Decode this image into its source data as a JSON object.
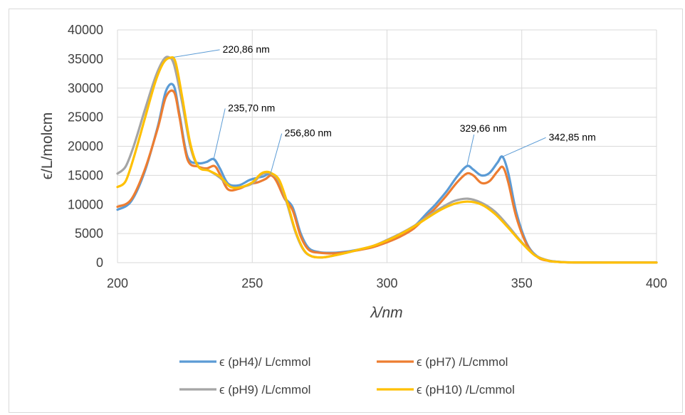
{
  "chart_data": {
    "type": "line",
    "title": "",
    "xlabel": "λ/nm",
    "ylabel": "ϵ/L/molcm",
    "xlim": [
      200,
      400
    ],
    "ylim": [
      0,
      40000
    ],
    "x_ticks": [
      "200",
      "250",
      "300",
      "350",
      "400"
    ],
    "y_ticks": [
      "0",
      "5000",
      "10000",
      "15000",
      "20000",
      "25000",
      "30000",
      "35000",
      "40000"
    ],
    "grid": true,
    "legend_position": "bottom",
    "series": [
      {
        "name": "ϵ (pH4)/ L/cmmol",
        "color": "#5B9BD5",
        "x": [
          200,
          205,
          210,
          215,
          218,
          220.86,
          223,
          226,
          230,
          233,
          235.7,
          238,
          241,
          245,
          249,
          252,
          254,
          256.8,
          259,
          262,
          265,
          268,
          271,
          275,
          280,
          285,
          290,
          295,
          300,
          305,
          310,
          315,
          318,
          322,
          326,
          329.66,
          332,
          335,
          338,
          341,
          342.85,
          345,
          348,
          352,
          356,
          360,
          365,
          370,
          380,
          390,
          400
        ],
        "y": [
          9100,
          10500,
          15500,
          23500,
          29500,
          30400,
          25500,
          18200,
          17100,
          17300,
          17800,
          16200,
          13600,
          13300,
          14200,
          14600,
          14800,
          15300,
          14200,
          11200,
          9500,
          5000,
          2500,
          1800,
          1700,
          1900,
          2300,
          2800,
          3800,
          4800,
          6200,
          8600,
          10000,
          12200,
          14800,
          16600,
          16000,
          15000,
          15400,
          17200,
          18200,
          15400,
          8600,
          3200,
          1000,
          350,
          100,
          50,
          30,
          20,
          20
        ]
      },
      {
        "name": "ϵ (pH7) /L/cmmol",
        "color": "#ED7D31",
        "x": [
          200,
          205,
          210,
          215,
          218,
          221,
          223,
          226,
          230,
          233,
          236,
          238,
          241,
          245,
          249,
          252,
          255,
          257,
          259,
          262,
          265,
          268,
          271,
          275,
          280,
          285,
          290,
          295,
          300,
          305,
          310,
          315,
          318,
          322,
          326,
          329.5,
          332,
          335,
          338,
          341,
          343,
          345,
          348,
          352,
          356,
          360,
          365,
          370,
          380,
          390,
          400
        ],
        "y": [
          9600,
          10800,
          15800,
          23200,
          28500,
          29300,
          25000,
          17700,
          16500,
          16200,
          16600,
          15200,
          12600,
          12700,
          13500,
          13800,
          14400,
          15000,
          14000,
          11000,
          9000,
          4500,
          2200,
          1700,
          1600,
          1800,
          2200,
          2700,
          3500,
          4500,
          5900,
          8100,
          9400,
          11500,
          13800,
          15300,
          15000,
          13700,
          14000,
          15700,
          16400,
          13800,
          7800,
          3000,
          900,
          300,
          90,
          40,
          20,
          20,
          20
        ]
      },
      {
        "name": "ϵ (pH9) /L/cmmol",
        "color": "#A5A5A5",
        "x": [
          200,
          203,
          206,
          210,
          214,
          217,
          219,
          221,
          224,
          227,
          230,
          234,
          238,
          242,
          246,
          250,
          253,
          255,
          257,
          260,
          263,
          266,
          269,
          272,
          276,
          280,
          285,
          290,
          295,
          300,
          305,
          310,
          315,
          320,
          325,
          330,
          335,
          340,
          345,
          350,
          355,
          360,
          365,
          370,
          380,
          390,
          400
        ],
        "y": [
          15300,
          16500,
          20000,
          26000,
          31800,
          34800,
          35300,
          34000,
          27500,
          20000,
          16500,
          15800,
          14600,
          13000,
          13000,
          13600,
          15000,
          15400,
          15300,
          14000,
          10000,
          5300,
          2200,
          1100,
          900,
          1200,
          1700,
          2300,
          2900,
          3900,
          5000,
          6300,
          7900,
          9400,
          10600,
          11000,
          10300,
          8800,
          6300,
          3500,
          1300,
          350,
          100,
          50,
          30,
          20,
          20
        ]
      },
      {
        "name": "ϵ (pH10) /L/cmmol",
        "color": "#FFC000",
        "x": [
          200,
          203,
          206,
          210,
          214,
          217,
          219.5,
          221.5,
          224,
          227,
          230,
          234,
          238,
          242,
          246,
          250,
          253,
          255,
          257,
          260,
          263,
          266,
          269,
          272,
          276,
          280,
          285,
          290,
          295,
          300,
          305,
          310,
          315,
          320,
          325,
          330,
          335,
          340,
          345,
          350,
          355,
          360,
          365,
          370,
          380,
          390,
          400
        ],
        "y": [
          13000,
          14000,
          18000,
          24500,
          31000,
          34300,
          35200,
          34500,
          28500,
          20500,
          16500,
          15800,
          14800,
          13000,
          13000,
          13800,
          15200,
          15600,
          15400,
          14200,
          10300,
          5500,
          2300,
          1100,
          900,
          1200,
          1700,
          2300,
          2900,
          3800,
          4900,
          6200,
          7700,
          9100,
          10100,
          10500,
          10000,
          8400,
          6000,
          3400,
          1200,
          320,
          90,
          40,
          20,
          20,
          20
        ]
      }
    ],
    "annotations": [
      {
        "text": "220,86 nm",
        "x": 220.86,
        "y": 35300,
        "tx": 239,
        "ty": 36100
      },
      {
        "text": "235,70 nm",
        "x": 235.7,
        "y": 17800,
        "tx": 241,
        "ty": 26000
      },
      {
        "text": "256,80 nm",
        "x": 256.8,
        "y": 15300,
        "tx": 262,
        "ty": 21700
      },
      {
        "text": "329,66 nm",
        "x": 329.66,
        "y": 16600,
        "tx": 327,
        "ty": 22500
      },
      {
        "text": "342,85 nm",
        "x": 342.85,
        "y": 18200,
        "tx": 360,
        "ty": 21000
      }
    ]
  }
}
